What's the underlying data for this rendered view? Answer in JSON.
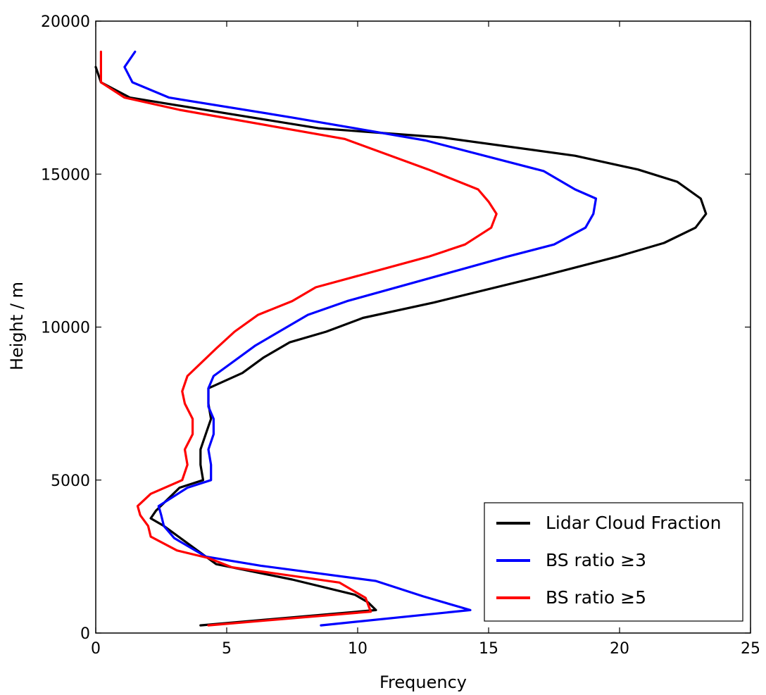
{
  "chart_data": {
    "type": "line",
    "xlabel": "Frequency",
    "ylabel": "Height / m",
    "xlim": [
      0,
      25
    ],
    "ylim": [
      0,
      20000
    ],
    "xticks": [
      0,
      5,
      10,
      15,
      20,
      25
    ],
    "yticks": [
      0,
      5000,
      10000,
      15000,
      20000
    ],
    "grid": false,
    "legend_position": "lower-right",
    "series": [
      {
        "name": "Lidar Cloud Fraction",
        "color": "#000000",
        "points": [
          [
            4.0,
            250
          ],
          [
            10.7,
            750
          ],
          [
            10.4,
            1000
          ],
          [
            9.9,
            1250
          ],
          [
            7.5,
            1750
          ],
          [
            4.6,
            2250
          ],
          [
            3.0,
            3250
          ],
          [
            2.6,
            3500
          ],
          [
            2.1,
            3750
          ],
          [
            2.3,
            4000
          ],
          [
            3.2,
            4750
          ],
          [
            4.1,
            5000
          ],
          [
            4.0,
            5500
          ],
          [
            4.0,
            6000
          ],
          [
            4.2,
            6500
          ],
          [
            4.4,
            7000
          ],
          [
            4.3,
            7500
          ],
          [
            4.3,
            8000
          ],
          [
            5.6,
            8500
          ],
          [
            6.4,
            9000
          ],
          [
            7.4,
            9500
          ],
          [
            8.8,
            9850
          ],
          [
            10.2,
            10300
          ],
          [
            12.9,
            10800
          ],
          [
            17.2,
            11700
          ],
          [
            19.9,
            12300
          ],
          [
            21.7,
            12750
          ],
          [
            22.9,
            13250
          ],
          [
            23.3,
            13700
          ],
          [
            23.1,
            14200
          ],
          [
            22.2,
            14750
          ],
          [
            20.7,
            15150
          ],
          [
            18.3,
            15600
          ],
          [
            13.2,
            16200
          ],
          [
            8.5,
            16500
          ],
          [
            4.9,
            17000
          ],
          [
            1.3,
            17500
          ],
          [
            0.2,
            18000
          ],
          [
            0.0,
            18500
          ]
        ]
      },
      {
        "name": "BS ratio ≥3",
        "color": "#0000ff",
        "points": [
          [
            8.6,
            250
          ],
          [
            14.3,
            750
          ],
          [
            12.5,
            1200
          ],
          [
            10.7,
            1700
          ],
          [
            6.3,
            2200
          ],
          [
            4.2,
            2500
          ],
          [
            3.9,
            2650
          ],
          [
            3.0,
            3100
          ],
          [
            2.6,
            3500
          ],
          [
            2.5,
            3850
          ],
          [
            2.4,
            4150
          ],
          [
            3.5,
            4750
          ],
          [
            4.4,
            5000
          ],
          [
            4.4,
            5500
          ],
          [
            4.3,
            6000
          ],
          [
            4.5,
            6500
          ],
          [
            4.5,
            7000
          ],
          [
            4.3,
            7400
          ],
          [
            4.3,
            8000
          ],
          [
            4.5,
            8400
          ],
          [
            6.1,
            9400
          ],
          [
            7.0,
            9850
          ],
          [
            8.1,
            10400
          ],
          [
            9.6,
            10850
          ],
          [
            15.7,
            12300
          ],
          [
            17.5,
            12700
          ],
          [
            18.7,
            13250
          ],
          [
            19.0,
            13700
          ],
          [
            19.1,
            14200
          ],
          [
            18.3,
            14500
          ],
          [
            17.1,
            15100
          ],
          [
            12.6,
            16100
          ],
          [
            7.5,
            16850
          ],
          [
            2.8,
            17500
          ],
          [
            1.4,
            18000
          ],
          [
            1.1,
            18500
          ],
          [
            1.5,
            19000
          ]
        ]
      },
      {
        "name": "BS ratio ≥5",
        "color": "#ff0000",
        "points": [
          [
            4.3,
            250
          ],
          [
            10.5,
            700
          ],
          [
            10.3,
            1150
          ],
          [
            9.3,
            1650
          ],
          [
            5.2,
            2150
          ],
          [
            4.3,
            2450
          ],
          [
            3.1,
            2700
          ],
          [
            2.1,
            3150
          ],
          [
            2.0,
            3500
          ],
          [
            1.7,
            3850
          ],
          [
            1.6,
            4150
          ],
          [
            2.1,
            4550
          ],
          [
            3.3,
            5000
          ],
          [
            3.5,
            5500
          ],
          [
            3.4,
            6000
          ],
          [
            3.7,
            6500
          ],
          [
            3.7,
            7000
          ],
          [
            3.4,
            7500
          ],
          [
            3.3,
            7900
          ],
          [
            3.5,
            8400
          ],
          [
            4.6,
            9300
          ],
          [
            5.3,
            9850
          ],
          [
            6.2,
            10400
          ],
          [
            7.5,
            10850
          ],
          [
            8.4,
            11300
          ],
          [
            12.7,
            12300
          ],
          [
            14.1,
            12700
          ],
          [
            15.1,
            13250
          ],
          [
            15.3,
            13700
          ],
          [
            15.0,
            14100
          ],
          [
            14.6,
            14500
          ],
          [
            12.7,
            15150
          ],
          [
            9.5,
            16150
          ],
          [
            3.2,
            17100
          ],
          [
            1.1,
            17500
          ],
          [
            0.2,
            18000
          ],
          [
            0.2,
            18500
          ],
          [
            0.2,
            19000
          ]
        ]
      }
    ]
  }
}
